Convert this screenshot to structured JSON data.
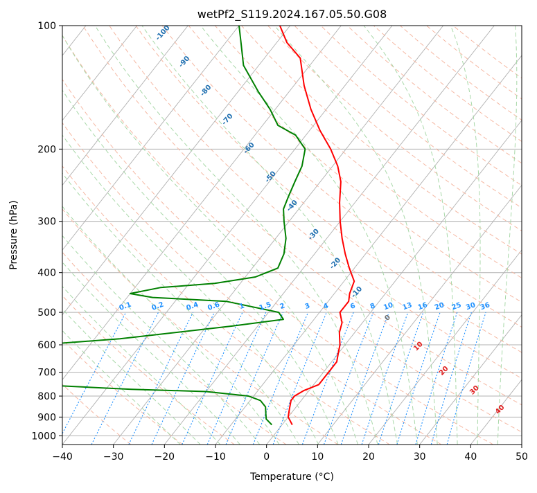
{
  "chart_data": {
    "type": "line",
    "subtype": "skew-t",
    "title": "wetPf2_S119.2024.167.05.50.G08",
    "xlabel": "Temperature (°C)",
    "ylabel": "Pressure (hPa)",
    "xlim": [
      -40,
      50
    ],
    "ylim": [
      1050,
      100
    ],
    "yscale": "log",
    "x_ticks": [
      -40,
      -30,
      -20,
      -10,
      0,
      10,
      20,
      30,
      40,
      50
    ],
    "y_ticks": [
      100,
      200,
      300,
      400,
      500,
      600,
      700,
      800,
      900,
      1000
    ],
    "grid": true,
    "series": [
      {
        "role": "temperature",
        "color": "#ff0000",
        "points": [
          [
            2,
            940
          ],
          [
            0,
            900
          ],
          [
            -1,
            860
          ],
          [
            -2,
            820
          ],
          [
            -2,
            800
          ],
          [
            -1,
            775
          ],
          [
            1,
            750
          ],
          [
            1,
            720
          ],
          [
            1,
            700
          ],
          [
            1,
            660
          ],
          [
            0,
            630
          ],
          [
            -1,
            600
          ],
          [
            -3,
            560
          ],
          [
            -4,
            530
          ],
          [
            -6,
            500
          ],
          [
            -6,
            470
          ],
          [
            -7,
            450
          ],
          [
            -8,
            420
          ],
          [
            -11,
            390
          ],
          [
            -14,
            360
          ],
          [
            -17,
            330
          ],
          [
            -20,
            300
          ],
          [
            -23,
            270
          ],
          [
            -26,
            240
          ],
          [
            -29,
            220
          ],
          [
            -33,
            200
          ],
          [
            -38,
            180
          ],
          [
            -43,
            160
          ],
          [
            -48,
            140
          ],
          [
            -53,
            120
          ],
          [
            -58,
            110
          ],
          [
            -62,
            100
          ]
        ]
      },
      {
        "role": "dewpoint",
        "color": "#008000",
        "points": [
          [
            -2,
            940
          ],
          [
            -4,
            910
          ],
          [
            -5,
            880
          ],
          [
            -6,
            850
          ],
          [
            -8,
            820
          ],
          [
            -11,
            800
          ],
          [
            -20,
            780
          ],
          [
            -35,
            770
          ],
          [
            -45,
            760
          ],
          [
            -55,
            750
          ],
          [
            -60,
            600
          ],
          [
            -45,
            580
          ],
          [
            -25,
            540
          ],
          [
            -16,
            520
          ],
          [
            -18,
            500
          ],
          [
            -30,
            470
          ],
          [
            -45,
            460
          ],
          [
            -50,
            450
          ],
          [
            -45,
            435
          ],
          [
            -35,
            425
          ],
          [
            -28,
            410
          ],
          [
            -25,
            390
          ],
          [
            -26,
            360
          ],
          [
            -28,
            330
          ],
          [
            -31,
            300
          ],
          [
            -33,
            280
          ],
          [
            -34,
            260
          ],
          [
            -35,
            240
          ],
          [
            -36,
            220
          ],
          [
            -38,
            200
          ],
          [
            -42,
            185
          ],
          [
            -47,
            175
          ],
          [
            -51,
            160
          ],
          [
            -56,
            145
          ],
          [
            -63,
            125
          ],
          [
            -67,
            110
          ],
          [
            -70,
            100
          ]
        ]
      }
    ],
    "dry_adiabat_labels": [
      -100,
      -90,
      -80,
      -70,
      -60,
      -50,
      -40,
      -30,
      -20,
      -10
    ],
    "mixing_ratio_labels": [
      "0.1",
      "0.2",
      "0.4",
      "0.6",
      "1",
      "1.5",
      "2",
      "3",
      "4",
      "6",
      "8",
      "10",
      "13",
      "16",
      "20",
      "25",
      "30",
      "36"
    ],
    "moist_adiabat_labels": [
      "0",
      "10",
      "20",
      "30",
      "40"
    ],
    "colors": {
      "temperature": "#ff0000",
      "dewpoint": "#008000",
      "isotherm": "#b0b0b0",
      "dry_adiabat": "#f5b8a3",
      "moist_adiabat": "#a8d8a8",
      "mixing_ratio": "#1e90ff",
      "dry_label": "#1f6fb0",
      "moist_label": "#e02020"
    }
  }
}
